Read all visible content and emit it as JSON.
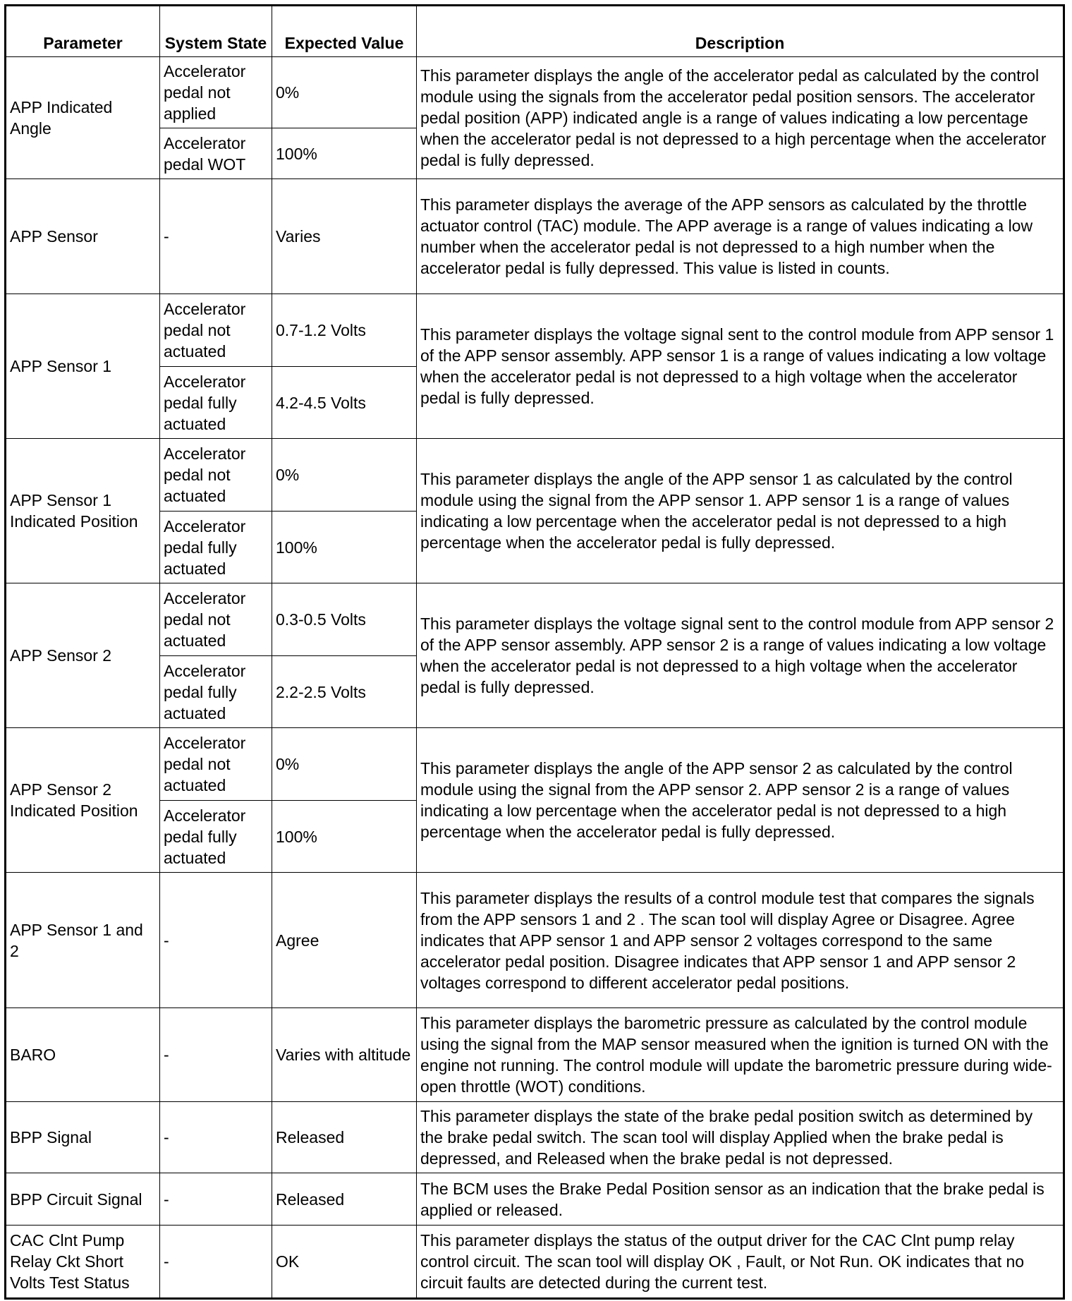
{
  "headers": [
    "Parameter",
    "System State",
    "Expected Value",
    "Description"
  ],
  "rows": [
    {
      "parameter": "APP Indicated Angle",
      "states": [
        {
          "state": "Accelerator pedal not applied",
          "value": "0%"
        },
        {
          "state": "Accelerator pedal WOT",
          "value": "100%"
        }
      ],
      "description": "This parameter displays the angle of the accelerator pedal as calculated by the control module using the signals from the accelerator pedal position sensors. The accelerator pedal position (APP) indicated angle is a range of values indicating a low percentage when the accelerator pedal is not depressed to a high percentage when the accelerator pedal is fully depressed."
    },
    {
      "parameter": "APP Sensor",
      "states": [
        {
          "state": "-",
          "value": "Varies"
        }
      ],
      "description": "This parameter displays the average of the APP sensors as calculated by the throttle actuator control (TAC) module. The APP average is a range of values indicating a low number when the accelerator pedal is not depressed to a high number when the accelerator pedal is fully depressed. This value is listed in counts."
    },
    {
      "parameter": "APP Sensor 1",
      "states": [
        {
          "state": "Accelerator pedal not actuated",
          "value": "0.7-1.2 Volts"
        },
        {
          "state": "Accelerator pedal fully actuated",
          "value": "4.2-4.5 Volts"
        }
      ],
      "description": "This parameter displays the voltage signal sent to the control module from APP sensor 1 of the APP sensor assembly. APP sensor 1 is a range of values indicating a low voltage when the accelerator pedal is not depressed to a high voltage when the accelerator pedal is fully depressed."
    },
    {
      "parameter": "APP Sensor 1 Indicated Position",
      "states": [
        {
          "state": "Accelerator pedal not actuated",
          "value": "0%"
        },
        {
          "state": "Accelerator pedal fully actuated",
          "value": "100%"
        }
      ],
      "description": "This parameter displays the angle of the APP sensor 1 as calculated by the control module using the signal from the APP sensor 1. APP sensor 1 is a range of values indicating a low percentage when the accelerator pedal is not depressed to a high percentage when the accelerator pedal is fully depressed."
    },
    {
      "parameter": "APP Sensor 2",
      "states": [
        {
          "state": "Accelerator pedal not actuated",
          "value": "0.3-0.5 Volts"
        },
        {
          "state": "Accelerator pedal fully actuated",
          "value": "2.2-2.5 Volts"
        }
      ],
      "description": "This parameter displays the voltage signal sent to the control module from APP sensor 2 of the APP sensor assembly. APP sensor 2 is a range of values indicating a low voltage when the accelerator pedal is not depressed to a high voltage when the accelerator pedal is fully depressed."
    },
    {
      "parameter": "APP Sensor 2 Indicated Position",
      "states": [
        {
          "state": "Accelerator pedal not actuated",
          "value": "0%"
        },
        {
          "state": "Accelerator pedal fully actuated",
          "value": "100%"
        }
      ],
      "description": "This parameter displays the angle of the APP sensor 2 as calculated by the control module using the signal from the APP sensor 2. APP sensor 2 is a range of values indicating a low percentage when the accelerator pedal is not depressed to a high percentage when the accelerator pedal is fully depressed."
    },
    {
      "parameter": "APP Sensor 1 and 2",
      "states": [
        {
          "state": "-",
          "value": "Agree"
        }
      ],
      "description": "This parameter displays the results of a control module test that compares the signals from the APP sensors 1 and 2 . The scan tool will display Agree or Disagree. Agree indicates that APP sensor 1 and APP sensor 2 voltages correspond to the same accelerator pedal position. Disagree indicates that APP sensor 1 and APP sensor 2 voltages correspond to different accelerator pedal positions."
    },
    {
      "parameter": "BARO",
      "states": [
        {
          "state": "-",
          "value": "Varies with altitude"
        }
      ],
      "description": "This parameter displays the barometric pressure as calculated by the control module using the signal from the MAP sensor measured when the ignition is turned ON with the engine not running. The control module will update the barometric pressure during wide-open throttle (WOT) conditions."
    },
    {
      "parameter": "BPP Signal",
      "states": [
        {
          "state": "-",
          "value": "Released"
        }
      ],
      "description": "This parameter displays the state of the brake pedal position switch as determined by the brake pedal switch. The scan tool will display Applied when the brake pedal is depressed, and Released when the brake pedal is not depressed."
    },
    {
      "parameter": "BPP Circuit Signal",
      "states": [
        {
          "state": "-",
          "value": "Released"
        }
      ],
      "description": "The BCM uses the Brake Pedal Position sensor as an indication that the brake pedal is applied or released."
    },
    {
      "parameter": "CAC Clnt Pump Relay Ckt Short Volts Test Status",
      "states": [
        {
          "state": "-",
          "value": "OK"
        }
      ],
      "description": "This parameter displays the status of the output driver for the CAC Clnt pump relay control circuit. The scan tool will display OK , Fault, or Not Run. OK indicates that no circuit faults are detected during the current test."
    }
  ]
}
